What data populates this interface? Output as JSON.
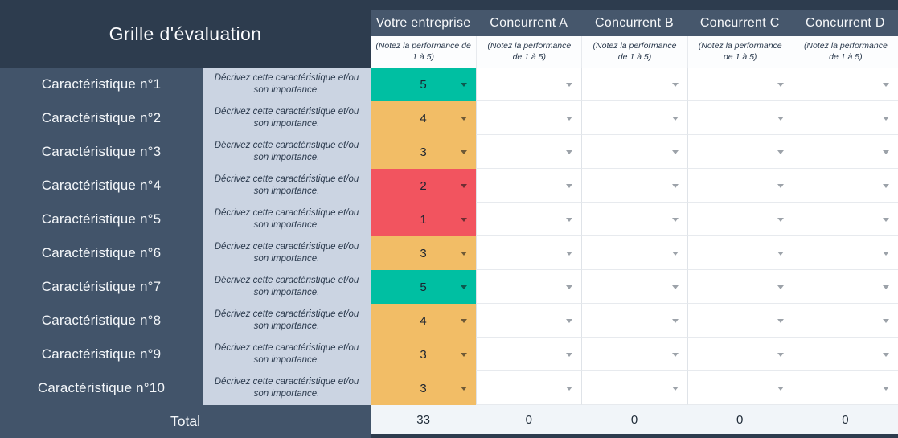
{
  "title": "Grille d'évaluation",
  "rating_note": "(Notez la performance de 1 à 5)",
  "columns": [
    {
      "label": "Votre entreprise"
    },
    {
      "label": "Concurrent A"
    },
    {
      "label": "Concurrent B"
    },
    {
      "label": "Concurrent C"
    },
    {
      "label": "Concurrent D"
    }
  ],
  "row_description": "Décrivez cette caractéristique et/ou son importance.",
  "rows": [
    {
      "label": "Caractéristique n°1",
      "score": "5",
      "color": "#00BFA2"
    },
    {
      "label": "Caractéristique n°2",
      "score": "4",
      "color": "#F2BD66"
    },
    {
      "label": "Caractéristique n°3",
      "score": "3",
      "color": "#F2BD66"
    },
    {
      "label": "Caractéristique n°4",
      "score": "2",
      "color": "#F2545F"
    },
    {
      "label": "Caractéristique n°5",
      "score": "1",
      "color": "#F2545F"
    },
    {
      "label": "Caractéristique n°6",
      "score": "3",
      "color": "#F2BD66"
    },
    {
      "label": "Caractéristique n°7",
      "score": "5",
      "color": "#00BFA2"
    },
    {
      "label": "Caractéristique n°8",
      "score": "4",
      "color": "#F2BD66"
    },
    {
      "label": "Caractéristique n°9",
      "score": "3",
      "color": "#F2BD66"
    },
    {
      "label": "Caractéristique n°10",
      "score": "3",
      "color": "#F2BD66"
    }
  ],
  "total": {
    "label": "Total",
    "values": [
      "33",
      "0",
      "0",
      "0",
      "0"
    ]
  },
  "theme": {
    "header_navy": "#2D3C4E",
    "band_navy": "#46576C",
    "sidebar_slate": "#42546A",
    "description_bg": "#CBD4E2",
    "total_bg": "#F1F5F9",
    "score_green": "#00BFA2",
    "score_orange": "#F2BD66",
    "score_red": "#F2545F"
  }
}
